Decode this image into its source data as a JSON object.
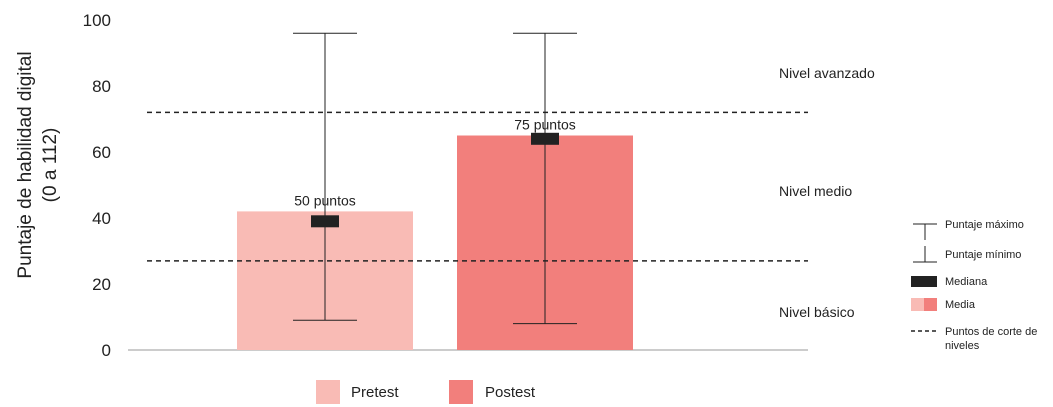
{
  "chart_data": {
    "type": "bar",
    "ylabel_line1": "Puntaje de habilidad digital",
    "ylabel_line2": "(0 a 112)",
    "ylim": [
      0,
      100
    ],
    "yticks": [
      0,
      20,
      40,
      60,
      80,
      100
    ],
    "categories": [
      "Pretest",
      "Postest"
    ],
    "series": [
      {
        "name": "Pretest",
        "mean": 42,
        "median": 39,
        "max": 96,
        "min": 9,
        "label": "50 puntos",
        "color": "#f9bbb5"
      },
      {
        "name": "Postest",
        "mean": 65,
        "median": 64,
        "max": 96,
        "min": 8,
        "label": "75 puntos",
        "color": "#f27f7c"
      }
    ],
    "cutoffs": [
      27,
      72
    ],
    "levels": [
      "Nivel avanzado",
      "Nivel medio",
      "Nivel básico"
    ],
    "legend": {
      "max": "Puntaje máximo",
      "min": "Puntaje mínimo",
      "median": "Mediana",
      "mean": "Media",
      "cutoff_line1": "Puntos de corte de",
      "cutoff_line2": "niveles"
    },
    "median_color": "#222222",
    "line_color": "#222222",
    "axis_color": "#bbbbbb"
  }
}
